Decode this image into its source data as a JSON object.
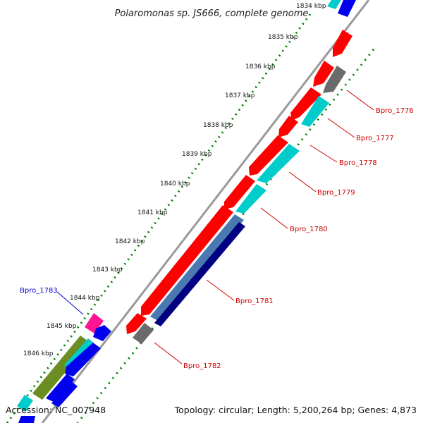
{
  "title": "Polaromonas sp. JS666, complete genome",
  "footer": {
    "accession": "Accession: NC_007948",
    "summary": "Topology: circular; Length: 5,200,264 bp; Genes: 4,873"
  },
  "ticks": [
    {
      "label": "1834 kbp"
    },
    {
      "label": "1835 kbp"
    },
    {
      "label": "1836 kbp"
    },
    {
      "label": "1837 kbp"
    },
    {
      "label": "1838 kbp"
    },
    {
      "label": "1839 kbp"
    },
    {
      "label": "1840 kbp"
    },
    {
      "label": "1841 kbp"
    },
    {
      "label": "1842 kbp"
    },
    {
      "label": "1843 kbp"
    },
    {
      "label": "1844 kbp"
    },
    {
      "label": "1845 kbp"
    },
    {
      "label": "1846 kbp"
    }
  ],
  "gene_labels": [
    {
      "label": "Bpro_1776",
      "color": "#cc0000"
    },
    {
      "label": "Bpro_1777",
      "color": "#cc0000"
    },
    {
      "label": "Bpro_1778",
      "color": "#cc0000"
    },
    {
      "label": "Bpro_1779",
      "color": "#cc0000"
    },
    {
      "label": "Bpro_1780",
      "color": "#cc0000"
    },
    {
      "label": "Bpro_1781",
      "color": "#cc0000"
    },
    {
      "label": "Bpro_1782",
      "color": "#cc0000"
    },
    {
      "label": "Bpro_1783",
      "color": "#0000cc"
    }
  ],
  "colors": {
    "cds_red": "#ff0000",
    "cds_cyan": "#00cccc",
    "cds_gray": "#6b6b6b",
    "cds_steelblue": "#4a78b0",
    "cds_navy": "#000080",
    "cds_blue": "#0000ee",
    "cds_magenta": "#ff1493",
    "cds_olive": "#6b8e23",
    "backbone": "#999999",
    "tick_dots": "#008000"
  }
}
